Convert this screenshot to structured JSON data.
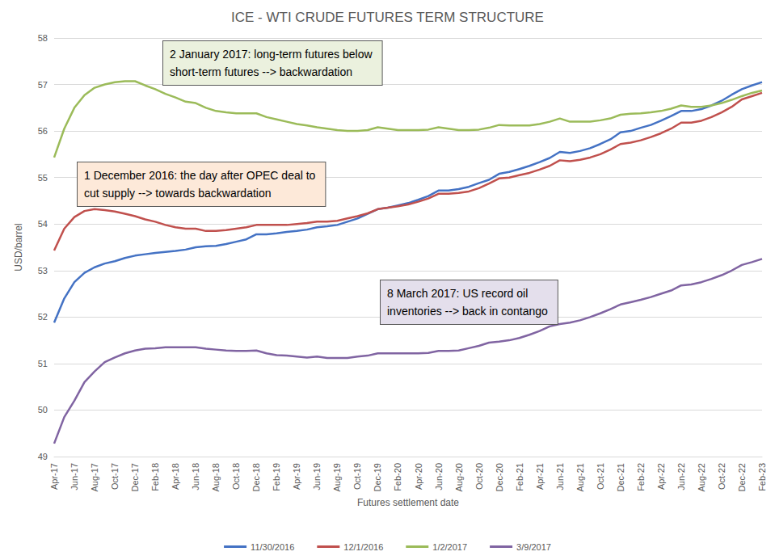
{
  "chart_data": {
    "type": "line",
    "title": "ICE - WTI CRUDE FUTURES TERM STRUCTURE",
    "xlabel": "Futures settlement date",
    "ylabel": "USD/barrel",
    "annotations": [
      "2 January 2017: long-term futures below\nshort-term futures --> backwardation",
      "1 December 2016: the day after OPEC deal to\ncut supply --> towards backwardation",
      "8 March 2017: US record oil\ninventories --> back in contango"
    ],
    "categories": [
      "Apr-17",
      null,
      "Jun-17",
      null,
      "Aug-17",
      null,
      "Oct-17",
      null,
      "Dec-17",
      null,
      "Feb-18",
      null,
      "Apr-18",
      null,
      "Jun-18",
      null,
      "Aug-18",
      null,
      "Oct-18",
      null,
      "Dec-18",
      null,
      "Feb-19",
      null,
      "Apr-19",
      null,
      "Jun-19",
      null,
      "Aug-19",
      null,
      "Oct-19",
      null,
      "Dec-19",
      null,
      "Feb-20",
      null,
      "Apr-20",
      null,
      "Jun-20",
      null,
      "Aug-20",
      null,
      "Oct-20",
      null,
      "Dec-20",
      null,
      "Feb-21",
      null,
      "Apr-21",
      null,
      "Jun-21",
      null,
      "Aug-21",
      null,
      "Oct-21",
      null,
      "Dec-21",
      null,
      "Feb-22",
      null,
      "Apr-22",
      null,
      "Jun-22",
      null,
      "Aug-22",
      null,
      "Oct-22",
      null,
      "Dec-22",
      null,
      "Feb-23"
    ],
    "series": [
      {
        "name": "11/30/2016",
        "color": "#4472C4",
        "values": [
          51.88,
          52.4,
          52.75,
          52.95,
          53.07,
          53.15,
          53.2,
          53.27,
          53.32,
          53.35,
          53.38,
          53.4,
          53.42,
          53.45,
          53.5,
          53.52,
          53.53,
          53.57,
          53.62,
          53.67,
          53.78,
          53.78,
          53.8,
          53.83,
          53.85,
          53.88,
          53.93,
          53.95,
          53.98,
          54.05,
          54.12,
          54.22,
          54.32,
          54.35,
          54.4,
          54.45,
          54.52,
          54.6,
          54.72,
          54.72,
          54.75,
          54.8,
          54.88,
          54.95,
          55.08,
          55.12,
          55.18,
          55.25,
          55.33,
          55.42,
          55.55,
          55.53,
          55.57,
          55.63,
          55.72,
          55.82,
          55.97,
          56.0,
          56.07,
          56.13,
          56.22,
          56.32,
          56.43,
          56.43,
          56.47,
          56.55,
          56.65,
          56.78,
          56.9,
          56.98,
          57.05
        ]
      },
      {
        "name": "12/1/2016",
        "color": "#C0504D",
        "values": [
          53.43,
          53.9,
          54.15,
          54.28,
          54.32,
          54.3,
          54.27,
          54.22,
          54.17,
          54.1,
          54.05,
          53.98,
          53.93,
          53.9,
          53.9,
          53.85,
          53.85,
          53.87,
          53.9,
          53.93,
          53.98,
          53.98,
          53.98,
          53.98,
          54.0,
          54.02,
          54.05,
          54.05,
          54.07,
          54.12,
          54.17,
          54.23,
          54.32,
          54.35,
          54.38,
          54.42,
          54.48,
          54.55,
          54.65,
          54.65,
          54.67,
          54.7,
          54.77,
          54.87,
          54.98,
          55.0,
          55.05,
          55.1,
          55.17,
          55.25,
          55.37,
          55.35,
          55.38,
          55.43,
          55.5,
          55.6,
          55.72,
          55.75,
          55.8,
          55.87,
          55.95,
          56.05,
          56.18,
          56.18,
          56.22,
          56.3,
          56.4,
          56.52,
          56.68,
          56.75,
          56.82
        ]
      },
      {
        "name": "1/2/2017",
        "color": "#9BBB59",
        "values": [
          55.43,
          56.05,
          56.5,
          56.77,
          56.93,
          57.0,
          57.05,
          57.07,
          57.07,
          56.98,
          56.9,
          56.8,
          56.72,
          56.63,
          56.6,
          56.5,
          56.43,
          56.4,
          56.38,
          56.38,
          56.38,
          56.3,
          56.25,
          56.2,
          56.15,
          56.12,
          56.08,
          56.05,
          56.02,
          56.0,
          56.0,
          56.02,
          56.08,
          56.05,
          56.02,
          56.02,
          56.02,
          56.03,
          56.08,
          56.05,
          56.02,
          56.02,
          56.03,
          56.07,
          56.13,
          56.12,
          56.12,
          56.12,
          56.15,
          56.2,
          56.27,
          56.2,
          56.2,
          56.2,
          56.23,
          56.27,
          56.35,
          56.37,
          56.38,
          56.4,
          56.43,
          56.48,
          56.55,
          56.52,
          56.52,
          56.55,
          56.6,
          56.67,
          56.75,
          56.82,
          56.87
        ]
      },
      {
        "name": "3/9/2017",
        "color": "#8064A2",
        "values": [
          49.28,
          49.85,
          50.2,
          50.6,
          50.83,
          51.03,
          51.13,
          51.22,
          51.28,
          51.32,
          51.33,
          51.35,
          51.35,
          51.35,
          51.35,
          51.32,
          51.3,
          51.28,
          51.27,
          51.27,
          51.28,
          51.22,
          51.18,
          51.17,
          51.15,
          51.13,
          51.15,
          51.12,
          51.12,
          51.12,
          51.15,
          51.17,
          51.22,
          51.22,
          51.22,
          51.22,
          51.22,
          51.23,
          51.27,
          51.27,
          51.28,
          51.33,
          51.38,
          51.45,
          51.47,
          51.5,
          51.55,
          51.62,
          51.7,
          51.8,
          51.85,
          51.88,
          51.93,
          52.0,
          52.08,
          52.17,
          52.27,
          52.32,
          52.37,
          52.43,
          52.5,
          52.57,
          52.68,
          52.7,
          52.75,
          52.82,
          52.9,
          53.0,
          53.12,
          53.18,
          53.25
        ]
      }
    ],
    "ylim": [
      49,
      58
    ],
    "yticks": [
      49,
      50,
      51,
      52,
      53,
      54,
      55,
      56,
      57,
      58
    ],
    "grid": true,
    "legend": "bottom"
  }
}
